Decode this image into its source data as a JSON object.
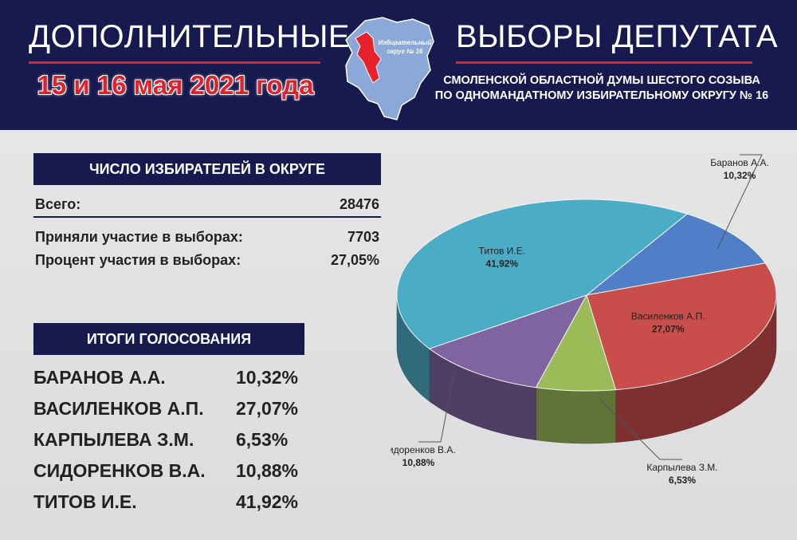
{
  "header": {
    "title_left": "ДОПОЛНИТЕЛЬНЫЕ",
    "title_right": "ВЫБОРЫ ДЕПУТАТА",
    "dates": "15 и 16 мая 2021 года",
    "subtitle_1": "СМОЛЕНСКОЙ ОБЛАСТНОЙ ДУМЫ ШЕСТОГО СОЗЫВА",
    "subtitle_2": "ПО ОДНОМАНДАТНОМУ ИЗБИРАТЕЛЬНОМУ ОКРУГУ № 16",
    "map_label_1": "Избирательный",
    "map_label_2": "округ № 16"
  },
  "voters": {
    "heading": "ЧИСЛО ИЗБИРАТЕЛЕЙ В ОКРУГЕ",
    "total_label": "Всего:",
    "total_value": "28476",
    "participated_label": "Приняли участие в выборах:",
    "participated_value": "7703",
    "percent_label": "Процент участия в выборах:",
    "percent_value": "27,05%"
  },
  "results": {
    "heading": "ИТОГИ ГОЛОСОВАНИЯ",
    "rows": [
      {
        "name": "БАРАНОВ А.А.",
        "value": "10,32%"
      },
      {
        "name": "ВАСИЛЕНКОВ А.П.",
        "value": "27,07%"
      },
      {
        "name": "КАРПЫЛЕВА З.М.",
        "value": "6,53%"
      },
      {
        "name": "СИДОРЕНКОВ В.А.",
        "value": "10,88%"
      },
      {
        "name": "ТИТОВ И.Е.",
        "value": "41,92%"
      }
    ]
  },
  "colors": {
    "header_bg": "#171a4f",
    "accent_red": "#d7262e",
    "map_fill": "#8aa8d8",
    "district_fill": "#e8222c"
  },
  "chart_data": {
    "type": "pie",
    "slices": [
      {
        "label": "Баранов А.А.",
        "value": 10.32,
        "value_label": "10,32%",
        "color": "#4f7fc6"
      },
      {
        "label": "Василенков А.П.",
        "value": 27.07,
        "value_label": "27,07%",
        "color": "#c94e4b"
      },
      {
        "label": "Карпылева З.М.",
        "value": 6.53,
        "value_label": "6,53%",
        "color": "#9bbb59"
      },
      {
        "label": "Сидоренков В.А.",
        "value": 10.88,
        "value_label": "10,88%",
        "color": "#8064a2"
      },
      {
        "label": "Титов И.Е.",
        "value": 41.92,
        "value_label": "41,92%",
        "color": "#4bacc6"
      }
    ],
    "legend": "none",
    "style": "3d"
  }
}
